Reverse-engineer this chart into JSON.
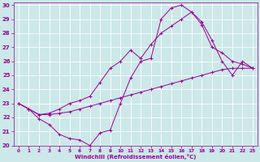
{
  "xlabel": "Windchill (Refroidissement éolien,°C)",
  "bg_color": "#cce8e8",
  "line_color": "#990099",
  "grid_color": "#ffffff",
  "xlim": [
    -0.5,
    23.5
  ],
  "ylim": [
    20,
    30.2
  ],
  "yticks": [
    20,
    21,
    22,
    23,
    24,
    25,
    26,
    27,
    28,
    29,
    30
  ],
  "xticks": [
    0,
    1,
    2,
    3,
    4,
    5,
    6,
    7,
    8,
    9,
    10,
    11,
    12,
    13,
    14,
    15,
    16,
    17,
    18,
    19,
    20,
    21,
    22,
    23
  ],
  "lines": [
    [
      0,
      23,
      1,
      22.6,
      2,
      21.9,
      3,
      21.5,
      4,
      20.8,
      5,
      20.5,
      6,
      20.4,
      7,
      20.0,
      8,
      20.9,
      9,
      21.1,
      10,
      23.0,
      11,
      24.8,
      12,
      26.0,
      13,
      26.2,
      14,
      29.0,
      15,
      29.8,
      16,
      30.0,
      17,
      29.5,
      18,
      28.6,
      19,
      27.0,
      20,
      26.6,
      21,
      26.0,
      22,
      25.8,
      23,
      25.5
    ],
    [
      0,
      23,
      1,
      22.6,
      2,
      22.2,
      3,
      22.2,
      4,
      22.3,
      5,
      22.4,
      6,
      22.6,
      7,
      22.8,
      8,
      23.0,
      9,
      23.2,
      10,
      23.4,
      11,
      23.6,
      12,
      23.8,
      13,
      24.0,
      14,
      24.2,
      15,
      24.4,
      16,
      24.6,
      17,
      24.8,
      18,
      25.0,
      19,
      25.2,
      20,
      25.4,
      21,
      25.5,
      22,
      25.5,
      23,
      25.5
    ],
    [
      0,
      23,
      1,
      22.6,
      2,
      22.2,
      3,
      22.3,
      4,
      22.6,
      5,
      23.0,
      6,
      23.2,
      7,
      23.5,
      8,
      24.5,
      9,
      25.5,
      10,
      26.0,
      11,
      26.8,
      12,
      26.2,
      13,
      27.2,
      14,
      28.0,
      15,
      28.5,
      16,
      29.0,
      17,
      29.5,
      18,
      28.8,
      19,
      27.5,
      20,
      26.0,
      21,
      25.0,
      22,
      26.0,
      23,
      25.5
    ]
  ]
}
